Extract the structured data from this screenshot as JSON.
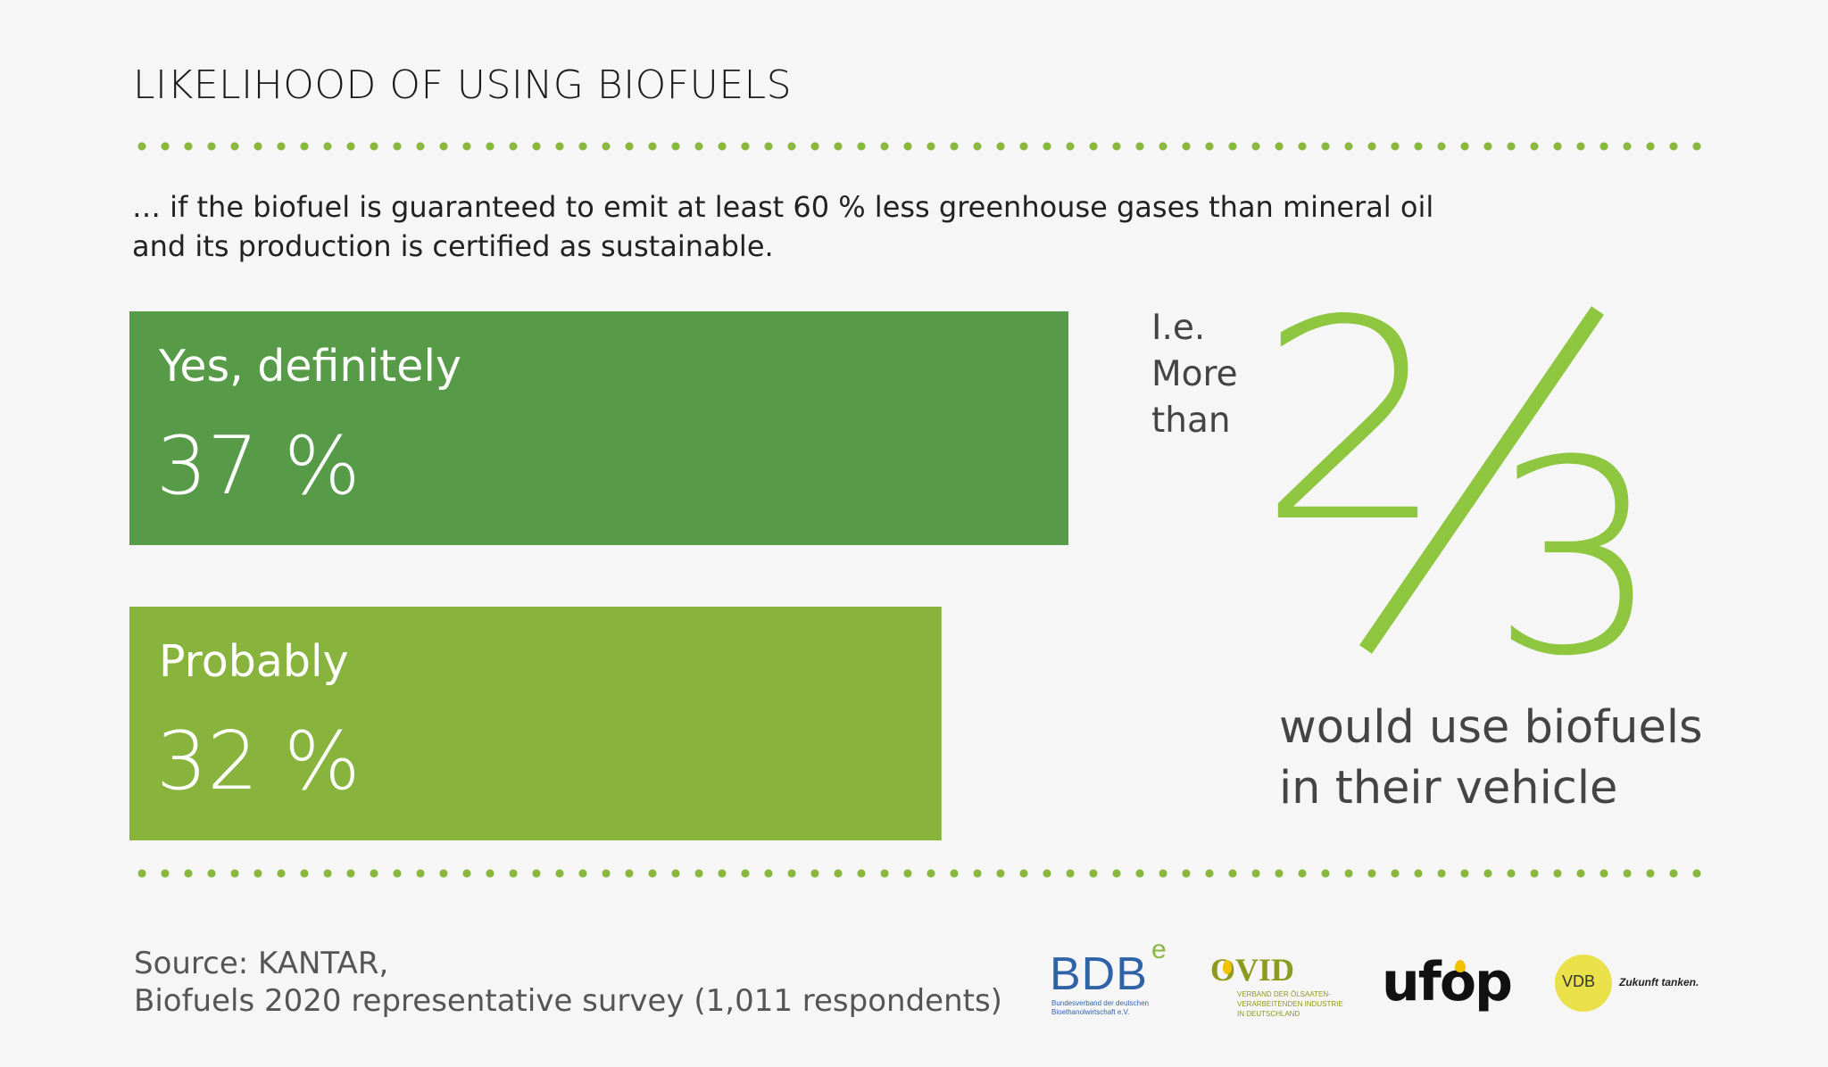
{
  "title": "LIKELIHOOD OF USING BIOFUELS",
  "subtitle": {
    "line1": "… if the biofuel is guaranteed to emit at least 60 % less greenhouse gases than mineral oil",
    "line2": "and its production is certified as sustainable."
  },
  "colors": {
    "dots": "#8ab83d",
    "bar_definitely": "#579b48",
    "bar_probably": "#88b43e",
    "fraction": "#8ec640"
  },
  "chart_data": {
    "type": "bar",
    "orientation": "horizontal",
    "categories": [
      "Yes, definitely",
      "Probably"
    ],
    "values": [
      37,
      32
    ],
    "value_labels": [
      "37 %",
      "32 %"
    ],
    "unit": "%"
  },
  "highlight": {
    "ie_line1": "I.e.",
    "ie_line2": "More",
    "ie_line3": "than",
    "numerator": "2",
    "denominator": "3",
    "caption_line1": "would use biofuels",
    "caption_line2": "in their vehicle"
  },
  "source": {
    "line1": "Source: KANTAR,",
    "line2": "Biofuels 2020 representative survey (1,011 respondents)"
  },
  "logos": {
    "bdbe": {
      "name": "BDB",
      "sup": "e",
      "tagline1": "Bundesverband der deutschen",
      "tagline2": "Bioethanolwirtschaft e.V."
    },
    "ovid": {
      "name": "OVID",
      "tagline1": "VERBAND DER ÖLSAATEN-",
      "tagline2": "VERARBEITENDEN INDUSTRIE",
      "tagline3": "IN DEUTSCHLAND"
    },
    "ufop": {
      "name": "ufop"
    },
    "vdb": {
      "name": "VDB",
      "tagline": "Zukunft tanken."
    }
  }
}
